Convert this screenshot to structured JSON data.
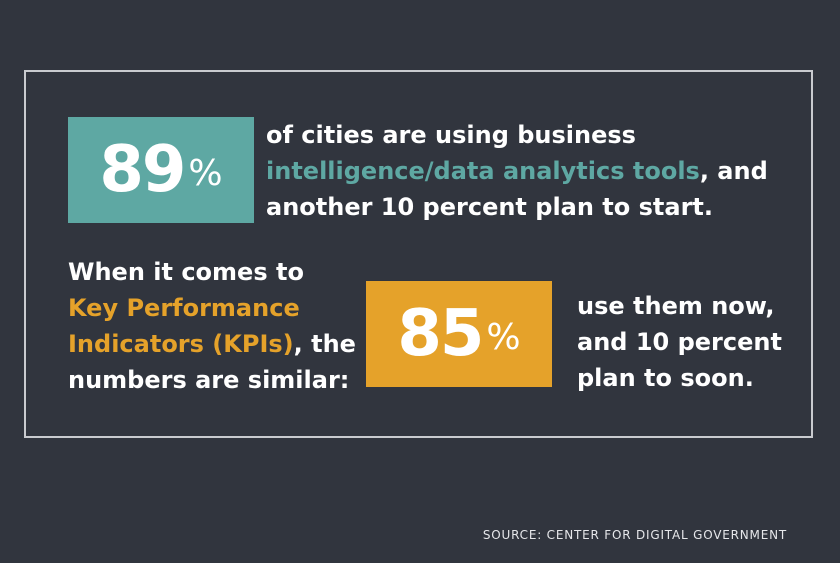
{
  "stat1": {
    "number": "89",
    "percent_sign": "%"
  },
  "stat1_text": {
    "line1": "of cities are using business",
    "line2_highlight": "intelligence/data analytics tools",
    "line2_rest": ", and",
    "line3": "another 10 percent plan to start."
  },
  "stat2_intro": {
    "line1": "When it comes to",
    "line2_highlight": "Key Performance",
    "line3_highlight": "Indicators (KPIs)",
    "line3_rest": ", the",
    "line4": "numbers are similar:"
  },
  "stat2": {
    "number": "85",
    "percent_sign": "%"
  },
  "stat2_text": {
    "line1": "use them now,",
    "line2": "and 10 percent",
    "line3": "plan to soon."
  },
  "source": "SOURCE: CENTER FOR DIGITAL GOVERNMENT",
  "colors": {
    "background": "#31353e",
    "teal": "#5ea8a3",
    "gold": "#e5a22a",
    "frame": "#c9cbcf"
  }
}
